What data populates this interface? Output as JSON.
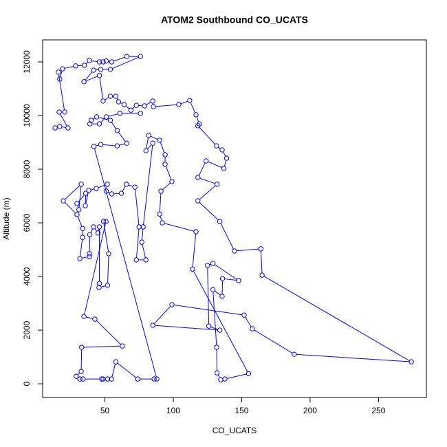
{
  "chart_data": {
    "type": "scatter",
    "lines": true,
    "title": "ATOM2 Southbound CO_UCATS",
    "x_label": "CO_UCATS",
    "y_label": "Altitude (m)",
    "color": "#0000ff",
    "x": [
      13.6,
      17,
      23,
      16.6,
      20.6,
      16,
      17,
      19,
      28.6,
      35,
      38.7,
      46,
      48.7,
      51,
      55,
      66,
      76,
      54,
      47,
      41.7,
      34.7,
      46,
      48.7,
      54,
      58,
      60,
      64,
      69,
      73,
      79,
      85,
      85.5,
      104,
      112,
      116.6,
      119,
      118,
      131.6,
      135.7,
      139,
      137,
      124,
      118,
      132,
      118,
      134,
      144.7,
      164,
      164.9,
      274,
      188.4,
      157.8,
      151.8,
      99,
      85,
      134,
      126,
      125,
      129,
      147.7,
      136,
      135.7,
      129,
      131.7,
      132,
      134.7,
      137.7,
      155,
      114,
      116.6,
      92,
      90,
      91,
      99,
      94,
      94,
      90,
      82,
      80,
      85,
      78,
      77,
      80,
      73,
      75,
      72,
      65.8,
      62,
      55,
      51,
      51.8,
      43.7,
      38.2,
      35.7,
      36,
      29.6,
      31,
      32.7,
      19.6,
      29.6,
      33.7,
      33.7,
      31.7,
      38.7,
      38.7,
      39,
      41.7,
      45,
      46,
      46,
      45.7,
      52,
      52.8,
      49,
      50.8,
      34.7,
      42.7,
      62.8,
      33,
      32.7,
      29,
      31.7,
      34,
      47.7,
      48.7,
      52,
      54.8,
      58,
      74,
      86,
      88,
      42,
      47,
      59,
      66,
      59,
      54,
      44,
      40,
      39,
      46,
      51,
      61,
      76
    ],
    "y": [
      9540,
      9590,
      9540,
      10130,
      10130,
      11620,
      11360,
      11740,
      11850,
      11870,
      12050,
      12000,
      12000,
      12030,
      12000,
      12200,
      12200,
      11720,
      11720,
      11690,
      11260,
      11490,
      10540,
      10720,
      10720,
      10510,
      10410,
      10200,
      10380,
      10360,
      10540,
      10330,
      10410,
      10560,
      10030,
      9690,
      9620,
      8870,
      8720,
      8410,
      8030,
      8310,
      7690,
      7440,
      6820,
      6050,
      4950,
      5030,
      4050,
      820,
      1100,
      2050,
      2560,
      2950,
      2180,
      2000,
      2150,
      4410,
      4490,
      3850,
      3920,
      3260,
      3510,
      1360,
      410,
      150,
      180,
      380,
      4280,
      5670,
      6000,
      6330,
      7180,
      7540,
      8180,
      8540,
      9080,
      9260,
      8690,
      8970,
      5850,
      5280,
      4620,
      4620,
      5850,
      7330,
      7440,
      7100,
      7080,
      7180,
      7440,
      7280,
      7210,
      6640,
      7100,
      6720,
      6490,
      7440,
      6820,
      6310,
      5790,
      5460,
      4670,
      4740,
      4850,
      5560,
      5850,
      5620,
      5850,
      3740,
      3590,
      3670,
      4850,
      6050,
      6050,
      2510,
      2410,
      1410,
      1360,
      460,
      280,
      180,
      180,
      180,
      180,
      180,
      180,
      820,
      180,
      180,
      180,
      8850,
      8920,
      8870,
      8970,
      9440,
      9820,
      9950,
      9820,
      9690,
      9690,
      9950,
      10080,
      10080
    ],
    "xlim": [
      4.5,
      285
    ],
    "ylim": [
      -510,
      12820
    ],
    "xticks": [
      50,
      100,
      150,
      200,
      250
    ],
    "yticks": [
      0,
      2000,
      4000,
      6000,
      8000,
      10000,
      12000
    ]
  }
}
